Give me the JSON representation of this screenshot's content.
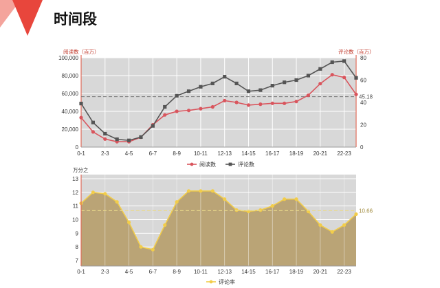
{
  "page": {
    "title": "时间段"
  },
  "colors": {
    "accent": "#e8463c",
    "plays": "#d9555d",
    "comments": "#555555",
    "area_fill": "#baa476",
    "area_line": "#f2cd4a",
    "plot_bg": "#d8d8d8",
    "axis_red": "#e06c5a"
  },
  "chart_data": [
    {
      "type": "line",
      "x": [
        "0-1",
        "1-2",
        "2-3",
        "3-4",
        "4-5",
        "5-6",
        "6-7",
        "7-8",
        "8-9",
        "9-10",
        "10-11",
        "11-12",
        "12-13",
        "13-14",
        "14-15",
        "15-16",
        "16-17",
        "17-18",
        "18-19",
        "19-20",
        "20-21",
        "21-22",
        "22-23",
        "23-24"
      ],
      "tick_labels": [
        "0-1",
        "2-3",
        "4-5",
        "6-7",
        "8-9",
        "10-11",
        "12-13",
        "14-15",
        "16-17",
        "18-19",
        "20-21",
        "22-23"
      ],
      "y_unit_left": "阅读数（百万）",
      "y_unit_right": "评论数（百万）",
      "y_ticks_left": [
        "100,000",
        "80,000",
        "60,000",
        "40,000",
        "20,000",
        "0"
      ],
      "y_ticks_right": [
        "80",
        "60",
        "40",
        "20",
        "0"
      ],
      "ylim_left": [
        0,
        100000
      ],
      "ylim_right": [
        0,
        80
      ],
      "series": [
        {
          "name": "阅读数",
          "axis": "left",
          "values": [
            33000,
            17000,
            9000,
            6000,
            6000,
            11000,
            25000,
            36000,
            40000,
            41000,
            43000,
            45000,
            52000,
            50000,
            47000,
            48000,
            49000,
            49000,
            51000,
            58000,
            71000,
            81000,
            78000,
            59000
          ]
        },
        {
          "name": "评论数",
          "axis": "right",
          "values": [
            39,
            22,
            12,
            7,
            6,
            9,
            19,
            36,
            46,
            50,
            54,
            57,
            63,
            57,
            50,
            51,
            55,
            58,
            60,
            64,
            70,
            76,
            77,
            62
          ]
        }
      ],
      "reference_line": {
        "value_right": 45.18,
        "label": "45.18"
      },
      "legend": "bottom-center",
      "grid": true
    },
    {
      "type": "area",
      "x": [
        "0-1",
        "1-2",
        "2-3",
        "3-4",
        "4-5",
        "5-6",
        "6-7",
        "7-8",
        "8-9",
        "9-10",
        "10-11",
        "11-12",
        "12-13",
        "13-14",
        "14-15",
        "15-16",
        "16-17",
        "17-18",
        "18-19",
        "19-20",
        "20-21",
        "21-22",
        "22-23",
        "23-24"
      ],
      "tick_labels": [
        "0-1",
        "2-3",
        "4-5",
        "6-7",
        "8-9",
        "10-11",
        "12-13",
        "14-15",
        "16-17",
        "18-19",
        "20-21",
        "22-23"
      ],
      "y_unit": "万分之",
      "y_ticks": [
        "13",
        "12",
        "11",
        "10",
        "9",
        "8",
        "7"
      ],
      "ylim": [
        6.6,
        13.3
      ],
      "series": [
        {
          "name": "评论率",
          "values": [
            11.2,
            12.0,
            11.9,
            11.3,
            9.8,
            8.0,
            7.8,
            9.6,
            11.3,
            12.1,
            12.1,
            12.1,
            11.5,
            10.7,
            10.6,
            10.7,
            11.0,
            11.5,
            11.5,
            10.6,
            9.6,
            9.1,
            9.6,
            10.4
          ]
        }
      ],
      "reference_line": {
        "value": 10.66,
        "label": "10.66"
      },
      "legend": "bottom-center",
      "grid": true
    }
  ]
}
